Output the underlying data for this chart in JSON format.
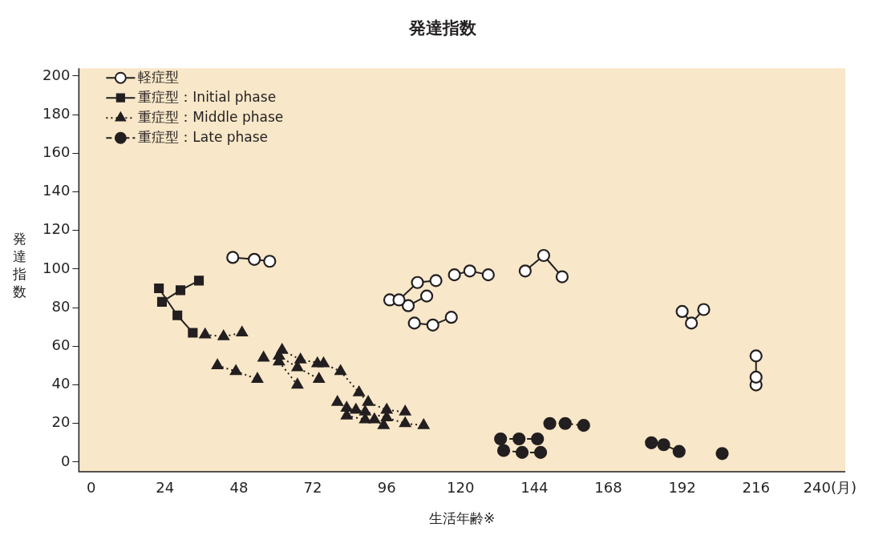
{
  "chart_data": {
    "type": "line",
    "title": "発達指数",
    "xlabel": "生活年齢※",
    "ylabel": "発達指数",
    "xlim": [
      -4,
      245
    ],
    "xticks": [
      0,
      24,
      48,
      72,
      96,
      120,
      144,
      168,
      192,
      216,
      {
        "value": 240,
        "label": "240(月)"
      }
    ],
    "ylim": [
      -5,
      204
    ],
    "yticks": [
      0,
      20,
      40,
      60,
      80,
      100,
      120,
      140,
      160,
      180,
      200
    ],
    "grid": false,
    "legend": "top left",
    "series": [
      {
        "name": "軽症型",
        "color": "#ffffff",
        "marker": "circle",
        "line_style": "solid",
        "x": [
          46,
          53,
          58,
          null,
          97,
          103,
          109,
          null,
          100,
          106,
          112,
          null,
          105,
          111,
          117,
          null,
          118,
          123,
          129,
          null,
          141,
          147,
          153,
          null,
          192,
          195,
          199,
          null,
          216,
          216,
          null,
          216
        ],
        "values": [
          106,
          105,
          104,
          null,
          84,
          81,
          86,
          null,
          84,
          93,
          94,
          null,
          72,
          71,
          75,
          null,
          97,
          99,
          97,
          null,
          99,
          107,
          96,
          null,
          78,
          72,
          79,
          null,
          55,
          40,
          null,
          44
        ]
      },
      {
        "name": "重症型：Initial phase",
        "color": "#231f20",
        "marker": "square",
        "line_style": "solid",
        "x": [
          22,
          28,
          33,
          null,
          23,
          29,
          35
        ],
        "values": [
          90,
          76,
          67,
          null,
          83,
          89,
          94
        ]
      },
      {
        "name": "重症型：Middle phase",
        "color": "#231f20",
        "marker": "triangle",
        "line_style": "dotted",
        "x": [
          37,
          43,
          49,
          null,
          41,
          47,
          54,
          null,
          62,
          68,
          75.5,
          81,
          87,
          90,
          96,
          102,
          null,
          61,
          67,
          74,
          null,
          61,
          67,
          null,
          56,
          null,
          73.5,
          null,
          80,
          83,
          86,
          89,
          96,
          102,
          108,
          null,
          83,
          89,
          92,
          95
        ],
        "values": [
          66,
          65,
          67,
          null,
          50,
          47,
          43,
          null,
          58,
          53,
          51,
          47,
          36,
          31,
          27,
          26,
          null,
          55,
          49,
          43,
          null,
          52,
          40,
          null,
          54,
          null,
          51,
          null,
          31,
          28,
          27,
          26,
          23,
          20,
          19,
          null,
          24,
          22,
          22,
          19
        ]
      },
      {
        "name": "重症型：Late phase",
        "color": "#231f20",
        "marker": "circle",
        "line_style": "dashed",
        "x": [
          133,
          139,
          145,
          null,
          134,
          140,
          146,
          null,
          149,
          154,
          160,
          null,
          182,
          186,
          191,
          null,
          205
        ],
        "values": [
          12,
          12,
          12,
          null,
          6,
          5,
          5,
          null,
          20,
          20,
          19,
          null,
          10,
          9,
          5.5,
          null,
          4.4
        ]
      }
    ]
  }
}
